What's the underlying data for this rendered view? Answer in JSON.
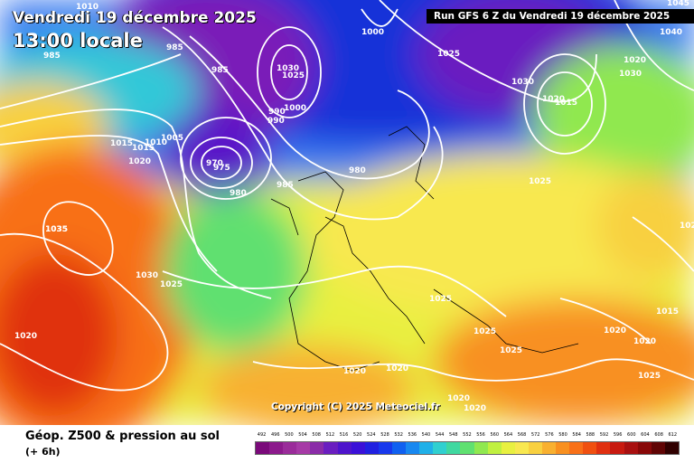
{
  "map": {
    "valid_date": "Vendredi 19 décembre 2025",
    "local_time": "13:00 locale",
    "run_info": "Run GFS 6 Z du Vendredi 19 décembre 2025",
    "copyright": "Copyright (C) 2025 Meteociel.fr"
  },
  "legend": {
    "title": "Géop. Z500 & pression au sol",
    "subtitle": "(+ 6h)",
    "scale": [
      "492",
      "496",
      "500",
      "504",
      "508",
      "512",
      "516",
      "520",
      "524",
      "528",
      "532",
      "536",
      "540",
      "544",
      "548",
      "552",
      "556",
      "560",
      "564",
      "568",
      "572",
      "576",
      "580",
      "584",
      "588",
      "592",
      "596",
      "600",
      "604",
      "608",
      "612"
    ],
    "colors": [
      "#7a0a7a",
      "#8c1a8c",
      "#9a2c9a",
      "#a63aa6",
      "#8a2ca8",
      "#6a1ec0",
      "#4e14cc",
      "#3a10d8",
      "#2020e0",
      "#1838ec",
      "#1060f0",
      "#1888f0",
      "#20b0e8",
      "#30d0d0",
      "#40d8a0",
      "#60e070",
      "#90e850",
      "#c0f040",
      "#e8f040",
      "#f8e850",
      "#f8d040",
      "#f8b030",
      "#f89020",
      "#f87018",
      "#f05010",
      "#e03010",
      "#c81a10",
      "#a81010",
      "#880808",
      "#600404",
      "#300000"
    ]
  },
  "isobars": [
    {
      "label": "1010",
      "id": "iso-1010-a"
    },
    {
      "label": "985",
      "id": "iso-985-a"
    },
    {
      "label": "985",
      "id": "iso-985-b"
    },
    {
      "label": "985",
      "id": "iso-985-c"
    },
    {
      "label": "1000",
      "id": "iso-1000-a"
    },
    {
      "label": "1030",
      "id": "iso-1030-a"
    },
    {
      "label": "1025",
      "id": "iso-1025-a"
    },
    {
      "label": "1000",
      "id": "iso-1000-b"
    },
    {
      "label": "990",
      "id": "iso-990-a"
    },
    {
      "label": "990",
      "id": "iso-990-b"
    },
    {
      "label": "1025",
      "id": "iso-1025-b"
    },
    {
      "label": "1030",
      "id": "iso-1030-b"
    },
    {
      "label": "1020",
      "id": "iso-1020-a"
    },
    {
      "label": "1015",
      "id": "iso-1015-a"
    },
    {
      "label": "1030",
      "id": "iso-1030-c"
    },
    {
      "label": "1035",
      "id": "iso-1035-a"
    },
    {
      "label": "1040",
      "id": "iso-1040-a"
    },
    {
      "label": "1045",
      "id": "iso-1045-a"
    },
    {
      "label": "1005",
      "id": "iso-1005-a"
    },
    {
      "label": "1010",
      "id": "iso-1010-b"
    },
    {
      "label": "1015",
      "id": "iso-1015-b"
    },
    {
      "label": "1015",
      "id": "iso-1015-c"
    },
    {
      "label": "1020",
      "id": "iso-1020-b"
    },
    {
      "label": "970",
      "id": "iso-970-a"
    },
    {
      "label": "975",
      "id": "iso-975-a"
    },
    {
      "label": "980",
      "id": "iso-980-a"
    },
    {
      "label": "985",
      "id": "iso-985-d"
    },
    {
      "label": "980",
      "id": "iso-980-b"
    },
    {
      "label": "1025",
      "id": "iso-1025-c"
    },
    {
      "label": "1020",
      "id": "iso-1020-c"
    },
    {
      "label": "1035",
      "id": "iso-1035-b"
    },
    {
      "label": "1030",
      "id": "iso-1030-d"
    },
    {
      "label": "1025",
      "id": "iso-1025-d"
    },
    {
      "label": "1025",
      "id": "iso-1025-e"
    },
    {
      "label": "1025",
      "id": "iso-1025-f"
    },
    {
      "label": "1025",
      "id": "iso-1025-g"
    },
    {
      "label": "1015",
      "id": "iso-1015-d"
    },
    {
      "label": "1020",
      "id": "iso-1020-d"
    },
    {
      "label": "1020",
      "id": "iso-1020-e"
    },
    {
      "label": "1020",
      "id": "iso-1020-f"
    },
    {
      "label": "1020",
      "id": "iso-1020-g"
    },
    {
      "label": "1020",
      "id": "iso-1020-h"
    },
    {
      "label": "1020",
      "id": "iso-1020-i"
    },
    {
      "label": "1020",
      "id": "iso-1020-j"
    },
    {
      "label": "1025",
      "id": "iso-1025-h"
    },
    {
      "label": "1020",
      "id": "iso-1020-k"
    }
  ]
}
